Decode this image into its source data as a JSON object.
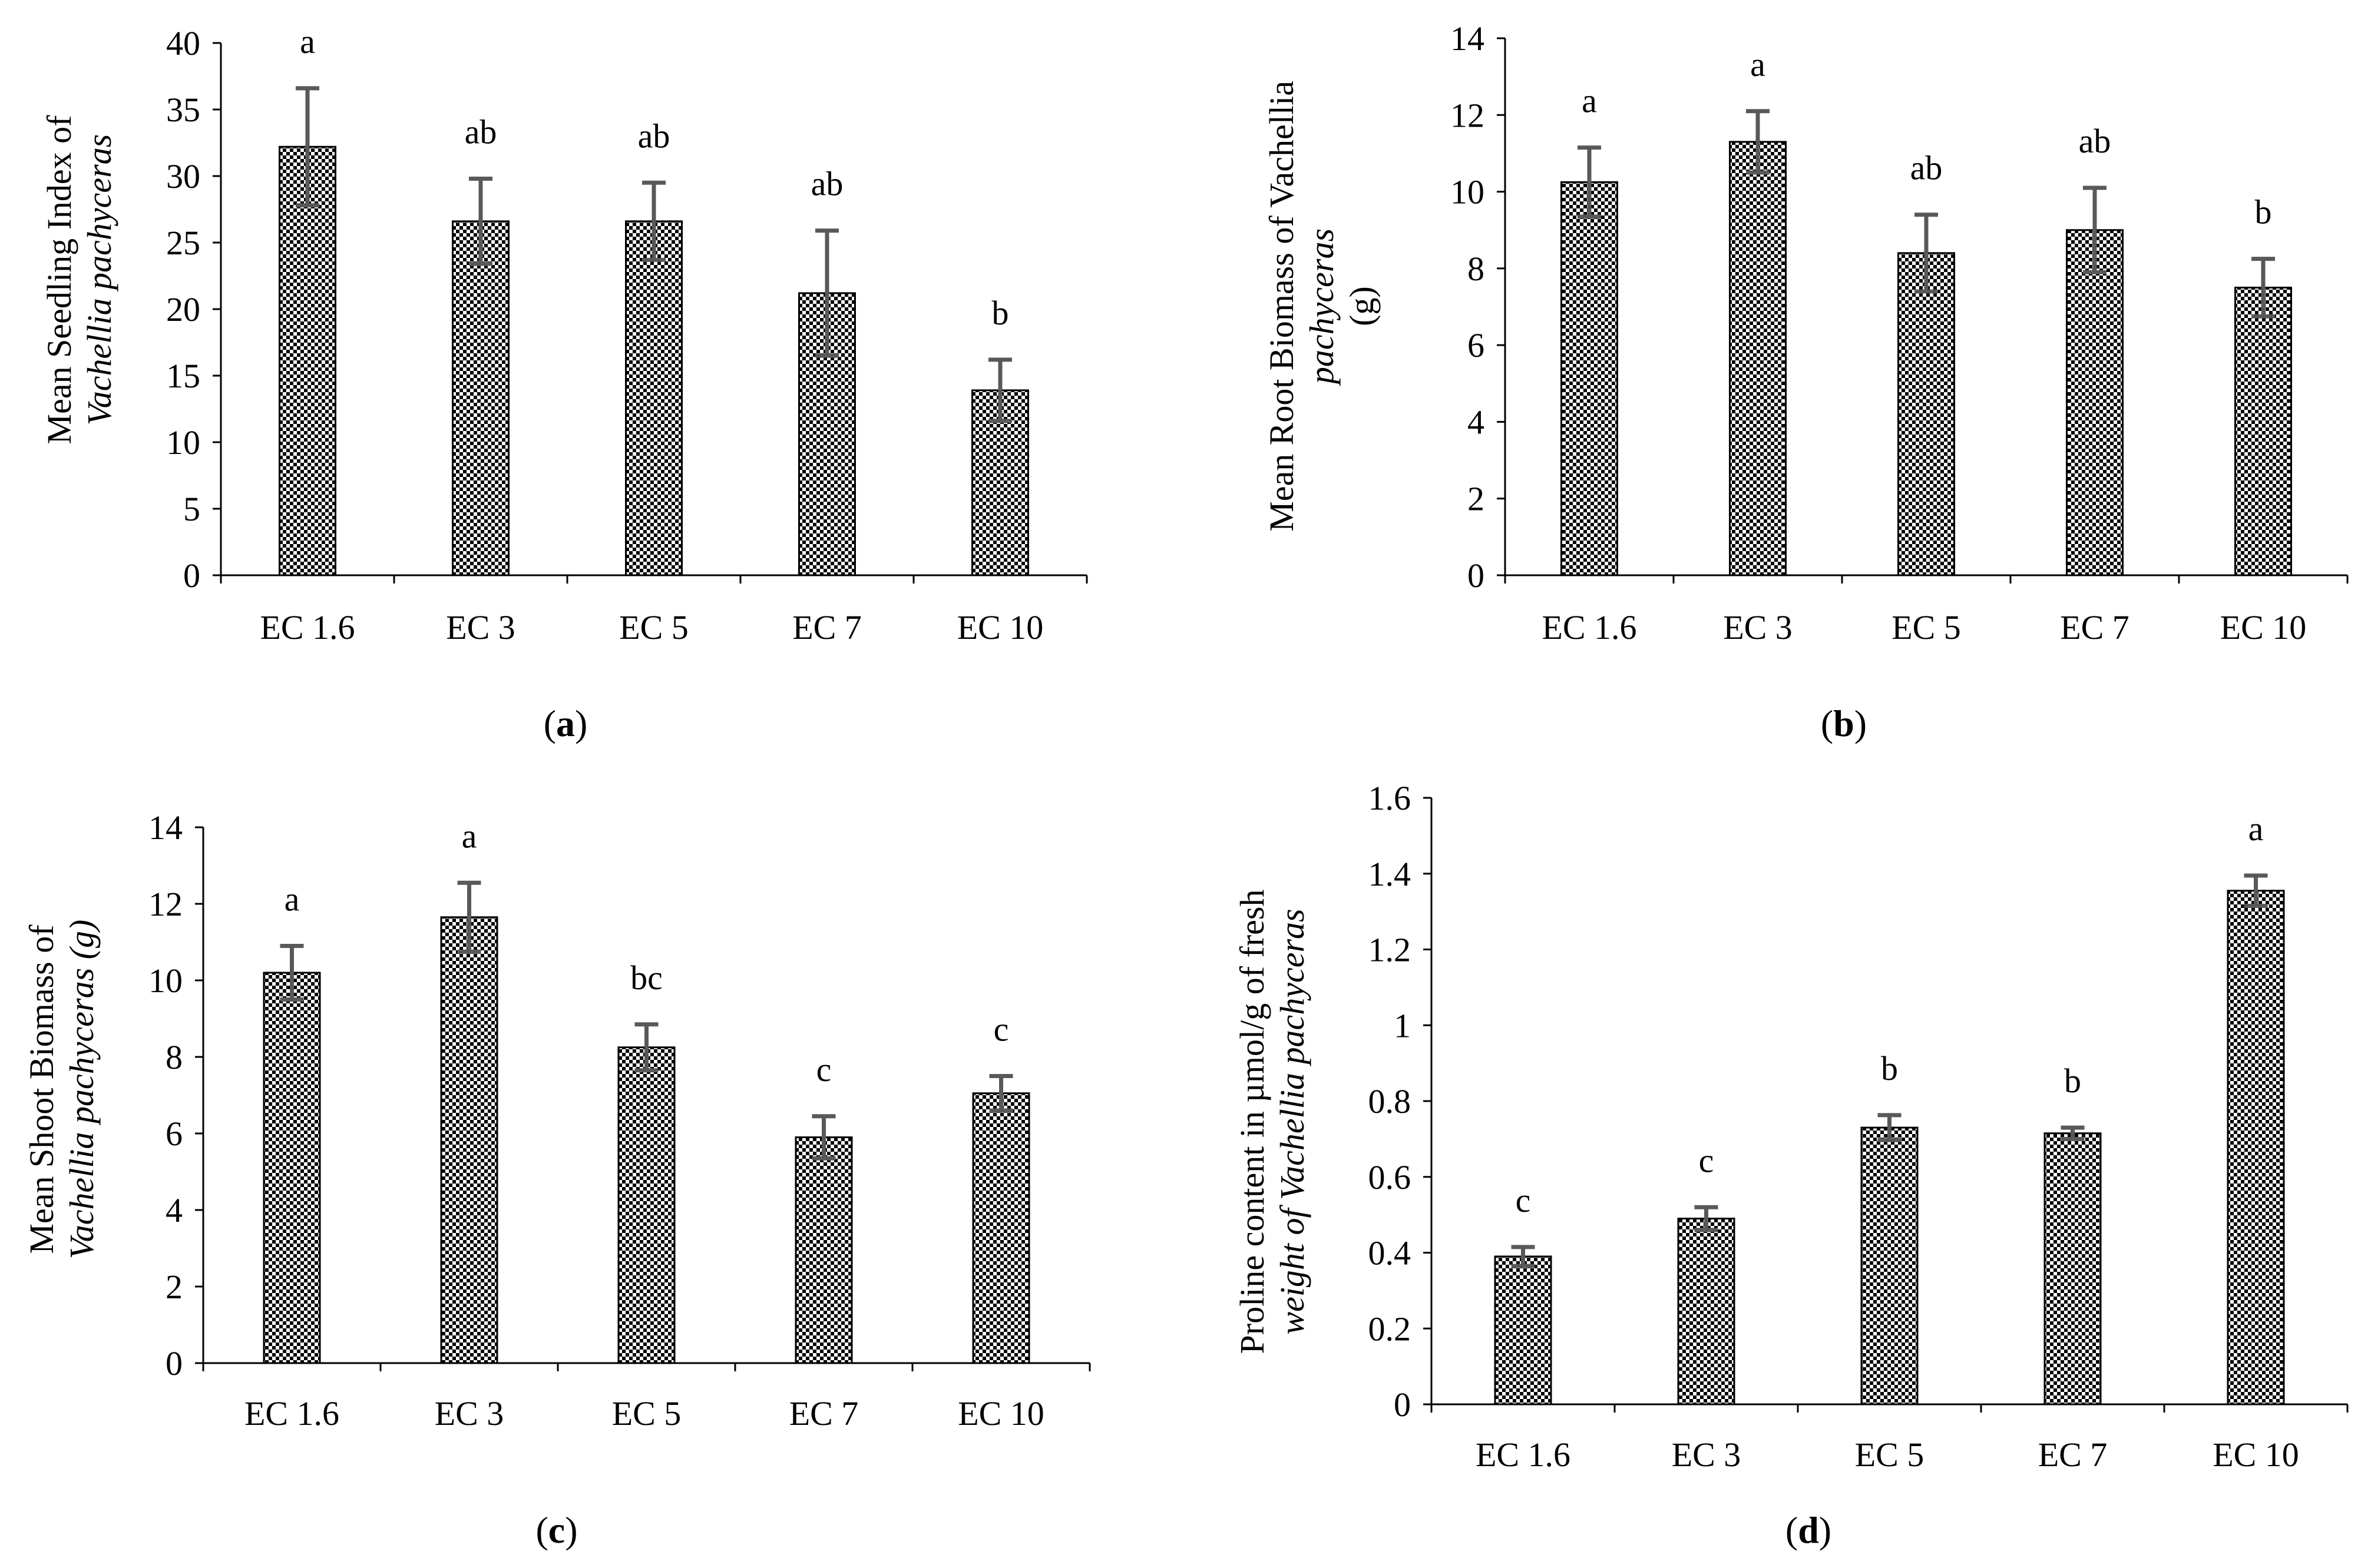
{
  "chart_data": [
    {
      "type": "bar",
      "panel_label": "a",
      "categories": [
        "EC 1.6",
        "EC 3",
        "EC 5",
        "EC 7",
        "EC 10"
      ],
      "values": [
        32.2,
        26.6,
        26.6,
        21.2,
        13.9
      ],
      "errors": [
        4.4,
        3.2,
        2.9,
        4.7,
        2.3
      ],
      "significance": [
        "a",
        "ab",
        "ab",
        "ab",
        "b"
      ],
      "ylabel": {
        "line1": "Mean Seedling Index of",
        "line2": "Vachellia pachyceras"
      },
      "ylim": [
        0,
        40
      ],
      "yticks": [
        0,
        5,
        10,
        15,
        20,
        25,
        30,
        35,
        40
      ],
      "ytick_labels": [
        "0",
        "5",
        "10",
        "15",
        "20",
        "25",
        "30",
        "35",
        "40"
      ],
      "grid": false
    },
    {
      "type": "bar",
      "panel_label": "b",
      "categories": [
        "EC 1.6",
        "EC 3",
        "EC 5",
        "EC 7",
        "EC 10"
      ],
      "values": [
        10.25,
        11.3,
        8.4,
        9.0,
        7.5
      ],
      "errors": [
        0.9,
        0.8,
        1.0,
        1.1,
        0.75
      ],
      "significance": [
        "a",
        "a",
        "ab",
        "ab",
        "b"
      ],
      "ylabel": {
        "line1": "Mean Root Biomass of Vachellia",
        "line2": "pachyceras",
        "line3": "(g)"
      },
      "ylim": [
        0,
        14
      ],
      "yticks": [
        0,
        2,
        4,
        6,
        8,
        10,
        12,
        14
      ],
      "ytick_labels": [
        "0",
        "2",
        "4",
        "6",
        "8",
        "10",
        "12",
        "14"
      ],
      "grid": false
    },
    {
      "type": "bar",
      "panel_label": "c",
      "categories": [
        "EC 1.6",
        "EC 3",
        "EC 5",
        "EC 7",
        "EC 10"
      ],
      "values": [
        10.2,
        11.65,
        8.25,
        5.9,
        7.05
      ],
      "errors": [
        0.7,
        0.9,
        0.6,
        0.55,
        0.45
      ],
      "significance": [
        "a",
        "a",
        "bc",
        "c",
        "c"
      ],
      "ylabel": {
        "line1": "Mean Shoot Biomass of",
        "line2": "Vachellia pachyceras (g)"
      },
      "ylim": [
        0,
        14
      ],
      "yticks": [
        0,
        2,
        4,
        6,
        8,
        10,
        12,
        14
      ],
      "ytick_labels": [
        "0",
        "2",
        "4",
        "6",
        "8",
        "10",
        "12",
        "14"
      ],
      "grid": false
    },
    {
      "type": "bar",
      "panel_label": "d",
      "categories": [
        "EC 1.6",
        "EC 3",
        "EC 5",
        "EC 7",
        "EC 10"
      ],
      "values": [
        0.39,
        0.49,
        0.73,
        0.715,
        1.355
      ],
      "errors": [
        0.025,
        0.03,
        0.033,
        0.015,
        0.04
      ],
      "significance": [
        "c",
        "c",
        "b",
        "b",
        "a"
      ],
      "ylabel": {
        "line1": "Proline content in µmol/g of fresh",
        "line2": "weight of Vachellia  pachyceras"
      },
      "ylim": [
        0,
        1.6
      ],
      "yticks": [
        0,
        0.2,
        0.4,
        0.6,
        0.8,
        1.0,
        1.2,
        1.4,
        1.6
      ],
      "ytick_labels": [
        "0",
        "0.2",
        "0.4",
        "0.6",
        "0.8",
        "1",
        "1.2",
        "1.4",
        "1.6"
      ],
      "grid": false
    }
  ]
}
